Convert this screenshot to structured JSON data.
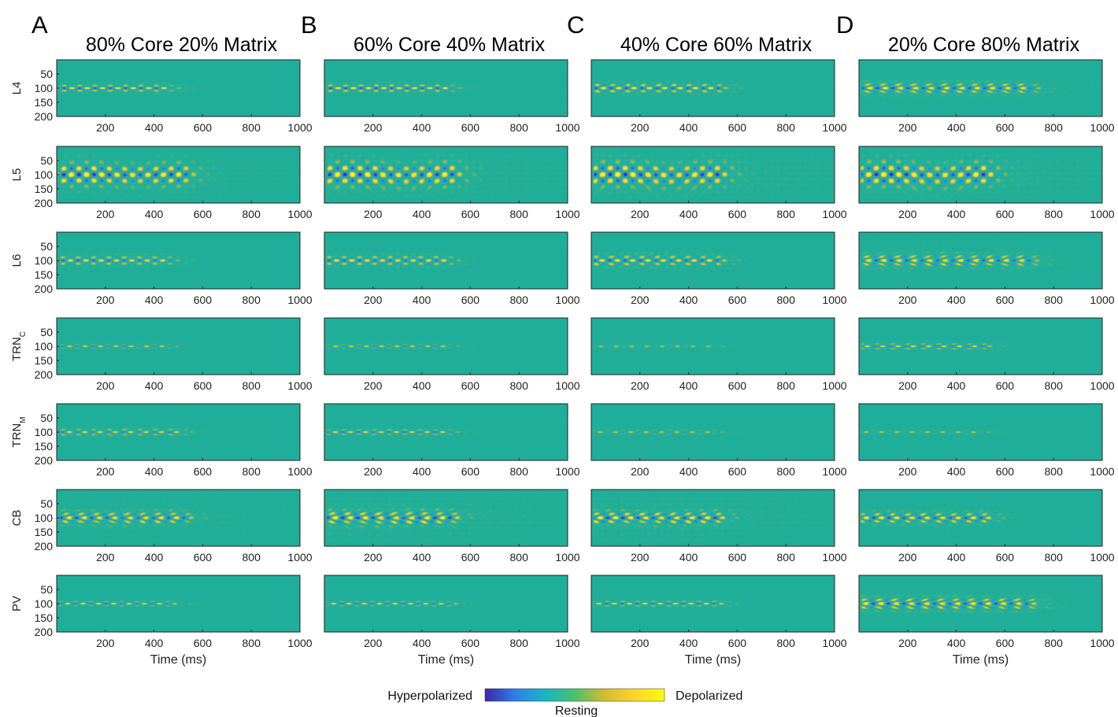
{
  "chart_data": {
    "type": "heatmap",
    "panel_letters": [
      "A",
      "B",
      "C",
      "D"
    ],
    "columns": [
      "80% Core 20% Matrix",
      "60% Core 40% Matrix",
      "40% Core 60% Matrix",
      "20% Core 80% Matrix"
    ],
    "rows": [
      {
        "label": "L4",
        "sub": ""
      },
      {
        "label": "L5",
        "sub": ""
      },
      {
        "label": "L6",
        "sub": ""
      },
      {
        "label": "TRN",
        "sub": "C"
      },
      {
        "label": "TRN",
        "sub": "M"
      },
      {
        "label": "CB",
        "sub": ""
      },
      {
        "label": "PV",
        "sub": ""
      }
    ],
    "xlabel": "Time (ms)",
    "x_ticks": [
      200,
      400,
      600,
      800,
      1000
    ],
    "xlim": [
      0,
      1000
    ],
    "y_ticks": [
      50,
      100,
      150,
      200
    ],
    "ylim": [
      0,
      200
    ],
    "colorbar": {
      "low_label": "Hyperpolarized",
      "mid_label": "Resting",
      "high_label": "Depolarized",
      "colors": [
        "#3e26a8",
        "#2e7fe8",
        "#17b5c6",
        "#49c16c",
        "#d6ba33",
        "#fbd52c",
        "#f9fb0e"
      ]
    },
    "background_color": "#1fae9a",
    "description_note": "",
    "wave_params": [
      [
        {
          "amp": 0.95,
          "end": 450,
          "decay": 0.15,
          "sigma": 9,
          "sweep": 0.0,
          "tail": 0.02
        },
        {
          "amp": 1.0,
          "end": 520,
          "decay": 0.1,
          "sigma": 28,
          "sweep": 0.0,
          "tail": 0.35
        },
        {
          "amp": 0.85,
          "end": 450,
          "decay": 0.15,
          "sigma": 12,
          "sweep": 0.0,
          "tail": 0.05
        },
        {
          "amp": 0.7,
          "end": 460,
          "decay": 0.1,
          "sigma": 5,
          "sweep": 0.0,
          "tail": 0.0
        },
        {
          "amp": 0.75,
          "end": 500,
          "decay": 0.1,
          "sigma": 9,
          "sweep": 0.4,
          "tail": 0.05
        },
        {
          "amp": 0.9,
          "end": 520,
          "decay": 0.1,
          "sigma": 16,
          "sweep": 0.7,
          "tail": 0.25
        },
        {
          "amp": 0.8,
          "end": 470,
          "decay": 0.1,
          "sigma": 6,
          "sweep": 0.1,
          "tail": 0.02
        }
      ],
      [
        {
          "amp": 0.95,
          "end": 500,
          "decay": 0.15,
          "sigma": 10,
          "sweep": 0.0,
          "tail": 0.06
        },
        {
          "amp": 1.0,
          "end": 520,
          "decay": 0.1,
          "sigma": 30,
          "sweep": 0.0,
          "tail": 0.4
        },
        {
          "amp": 0.85,
          "end": 500,
          "decay": 0.15,
          "sigma": 13,
          "sweep": 0.0,
          "tail": 0.08
        },
        {
          "amp": 0.7,
          "end": 500,
          "decay": 0.1,
          "sigma": 5,
          "sweep": 0.0,
          "tail": 0.0
        },
        {
          "amp": 0.8,
          "end": 500,
          "decay": 0.1,
          "sigma": 7,
          "sweep": 0.2,
          "tail": 0.1
        },
        {
          "amp": 1.0,
          "end": 520,
          "decay": 0.1,
          "sigma": 18,
          "sweep": 0.7,
          "tail": 0.35
        },
        {
          "amp": 0.8,
          "end": 520,
          "decay": 0.1,
          "sigma": 6,
          "sweep": 0.1,
          "tail": 0.03
        }
      ],
      [
        {
          "amp": 0.95,
          "end": 520,
          "decay": 0.15,
          "sigma": 12,
          "sweep": 0.3,
          "tail": 0.08
        },
        {
          "amp": 1.0,
          "end": 520,
          "decay": 0.1,
          "sigma": 30,
          "sweep": 0.0,
          "tail": 0.45
        },
        {
          "amp": 0.9,
          "end": 520,
          "decay": 0.15,
          "sigma": 14,
          "sweep": 0.3,
          "tail": 0.1
        },
        {
          "amp": 0.6,
          "end": 500,
          "decay": 0.1,
          "sigma": 4,
          "sweep": 0.0,
          "tail": 0.0
        },
        {
          "amp": 0.65,
          "end": 500,
          "decay": 0.1,
          "sigma": 5,
          "sweep": 0.0,
          "tail": 0.0
        },
        {
          "amp": 1.0,
          "end": 520,
          "decay": 0.1,
          "sigma": 16,
          "sweep": 0.6,
          "tail": 0.35
        },
        {
          "amp": 0.85,
          "end": 520,
          "decay": 0.1,
          "sigma": 7,
          "sweep": 0.2,
          "tail": 0.02
        }
      ],
      [
        {
          "amp": 0.95,
          "end": 700,
          "decay": 0.1,
          "sigma": 14,
          "sweep": 0.9,
          "tail": 0.15
        },
        {
          "amp": 1.0,
          "end": 520,
          "decay": 0.1,
          "sigma": 30,
          "sweep": 0.0,
          "tail": 0.45
        },
        {
          "amp": 0.9,
          "end": 700,
          "decay": 0.1,
          "sigma": 16,
          "sweep": 0.9,
          "tail": 0.18
        },
        {
          "amp": 0.75,
          "end": 520,
          "decay": 0.1,
          "sigma": 8,
          "sweep": 0.6,
          "tail": 0.0
        },
        {
          "amp": 0.65,
          "end": 500,
          "decay": 0.1,
          "sigma": 4,
          "sweep": 0.0,
          "tail": 0.0
        },
        {
          "amp": 0.95,
          "end": 520,
          "decay": 0.1,
          "sigma": 14,
          "sweep": 0.6,
          "tail": 0.15
        },
        {
          "amp": 0.95,
          "end": 700,
          "decay": 0.1,
          "sigma": 16,
          "sweep": 0.9,
          "tail": 0.15
        }
      ]
    ]
  }
}
